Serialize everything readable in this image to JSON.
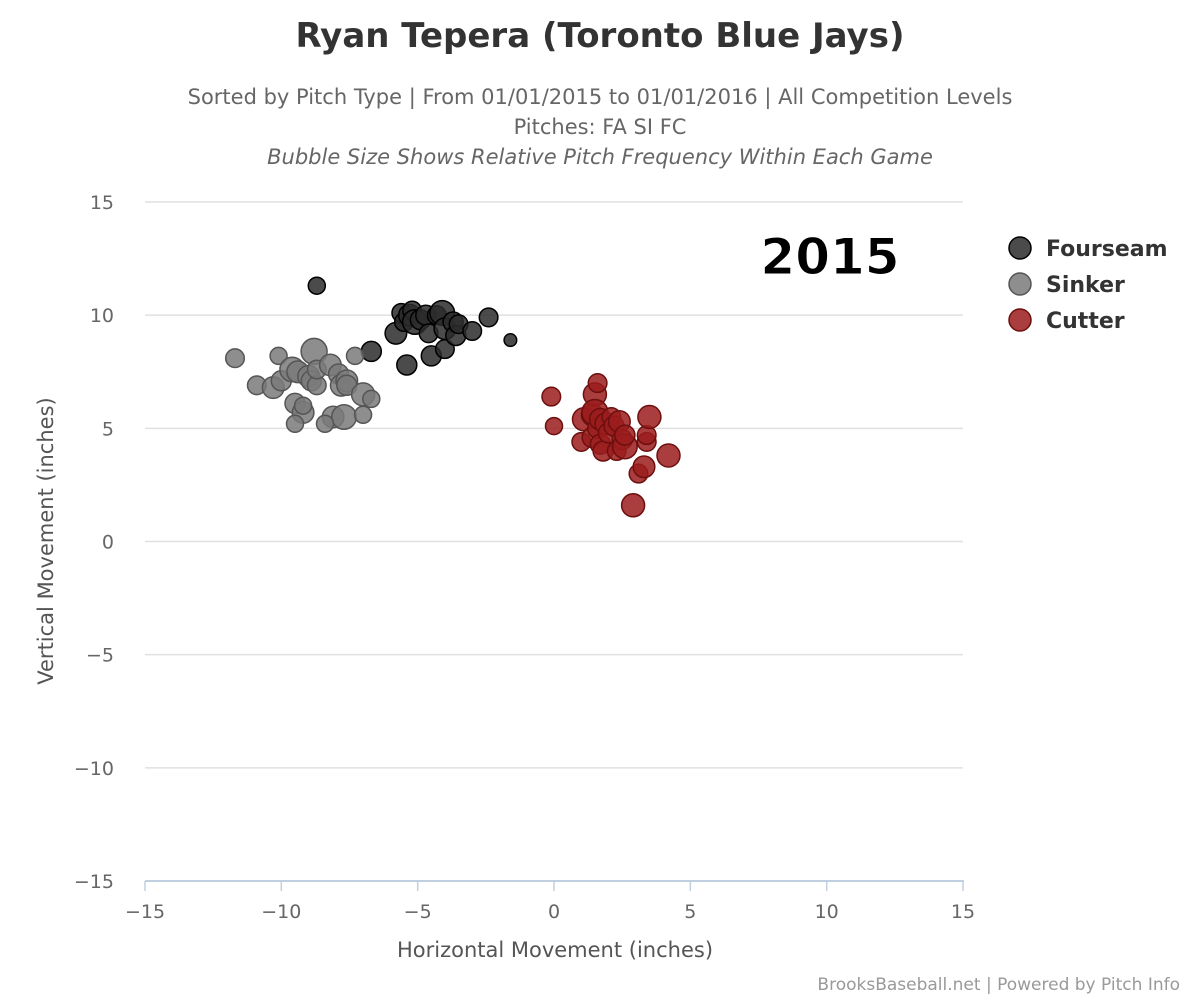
{
  "chart_data": {
    "type": "scatter",
    "title": "Ryan Tepera (Toronto Blue Jays)",
    "subtitle_lines": [
      "Sorted by Pitch Type | From 01/01/2015 to 01/01/2016 | All Competition Levels",
      "Pitches: FA SI FC",
      "Bubble Size Shows Relative Pitch Frequency Within Each Game"
    ],
    "xlabel": "Horizontal Movement (inches)",
    "ylabel": "Vertical Movement (inches)",
    "xlim": [
      -15,
      15
    ],
    "ylim": [
      -15,
      15
    ],
    "x_ticks": [
      -15,
      -10,
      -5,
      0,
      5,
      10,
      15
    ],
    "y_ticks": [
      -15,
      -10,
      -5,
      0,
      5,
      10,
      15
    ],
    "x_tick_labels": [
      "−15",
      "−10",
      "−5",
      "0",
      "5",
      "10",
      "15"
    ],
    "y_tick_labels": [
      "−15",
      "−10",
      "−5",
      "0",
      "5",
      "10",
      "15"
    ],
    "grid": "horizontal",
    "legend_position": "right",
    "annotation": "2015",
    "credit": "BrooksBaseball.net | Powered by Pitch Info",
    "series": [
      {
        "name": "Fourseam",
        "color": "#2b2b2b",
        "points": [
          [
            -8.7,
            11.3,
            0.3
          ],
          [
            -6.7,
            8.4,
            0.4
          ],
          [
            -5.8,
            9.2,
            0.45
          ],
          [
            -5.6,
            10.1,
            0.35
          ],
          [
            -5.5,
            9.7,
            0.35
          ],
          [
            -5.4,
            7.8,
            0.4
          ],
          [
            -5.3,
            10.0,
            0.45
          ],
          [
            -5.2,
            10.2,
            0.35
          ],
          [
            -5.1,
            9.7,
            0.55
          ],
          [
            -4.9,
            9.8,
            0.4
          ],
          [
            -4.7,
            10.0,
            0.4
          ],
          [
            -4.6,
            9.2,
            0.35
          ],
          [
            -4.5,
            8.2,
            0.4
          ],
          [
            -4.3,
            10.0,
            0.35
          ],
          [
            -4.1,
            10.1,
            0.55
          ],
          [
            -4.0,
            9.4,
            0.45
          ],
          [
            -4.0,
            8.5,
            0.35
          ],
          [
            -3.7,
            9.7,
            0.4
          ],
          [
            -3.6,
            9.1,
            0.4
          ],
          [
            -3.5,
            9.6,
            0.35
          ],
          [
            -3.0,
            9.3,
            0.35
          ],
          [
            -2.4,
            9.9,
            0.35
          ],
          [
            -1.6,
            8.9,
            0.15
          ]
        ]
      },
      {
        "name": "Sinker",
        "color": "#7a7a7a",
        "points": [
          [
            -11.7,
            8.1,
            0.35
          ],
          [
            -10.9,
            6.9,
            0.35
          ],
          [
            -10.3,
            6.8,
            0.45
          ],
          [
            -10.1,
            8.2,
            0.3
          ],
          [
            -10.0,
            7.1,
            0.4
          ],
          [
            -9.6,
            7.6,
            0.55
          ],
          [
            -9.5,
            6.1,
            0.4
          ],
          [
            -9.4,
            7.5,
            0.45
          ],
          [
            -9.2,
            5.7,
            0.45
          ],
          [
            -9.2,
            6.0,
            0.3
          ],
          [
            -9.5,
            5.2,
            0.3
          ],
          [
            -9.0,
            7.3,
            0.45
          ],
          [
            -8.9,
            7.1,
            0.4
          ],
          [
            -8.8,
            8.4,
            0.6
          ],
          [
            -8.7,
            6.9,
            0.35
          ],
          [
            -8.7,
            7.6,
            0.35
          ],
          [
            -8.2,
            7.8,
            0.45
          ],
          [
            -8.1,
            5.5,
            0.45
          ],
          [
            -7.9,
            7.4,
            0.4
          ],
          [
            -7.8,
            6.9,
            0.45
          ],
          [
            -7.6,
            7.1,
            0.45
          ],
          [
            -7.7,
            5.5,
            0.55
          ],
          [
            -7.6,
            6.9,
            0.4
          ],
          [
            -7.3,
            8.2,
            0.3
          ],
          [
            -7.0,
            6.5,
            0.5
          ],
          [
            -7.0,
            5.6,
            0.3
          ],
          [
            -6.7,
            6.3,
            0.3
          ],
          [
            -8.4,
            5.2,
            0.3
          ]
        ]
      },
      {
        "name": "Cutter",
        "color": "#9b1c1c",
        "points": [
          [
            -0.1,
            6.4,
            0.35
          ],
          [
            0.0,
            5.1,
            0.3
          ],
          [
            1.0,
            4.4,
            0.35
          ],
          [
            1.1,
            5.4,
            0.5
          ],
          [
            1.4,
            5.6,
            0.45
          ],
          [
            1.4,
            4.6,
            0.4
          ],
          [
            1.5,
            6.5,
            0.5
          ],
          [
            1.5,
            5.7,
            0.6
          ],
          [
            1.6,
            7.0,
            0.35
          ],
          [
            1.6,
            5.0,
            0.4
          ],
          [
            1.7,
            5.4,
            0.45
          ],
          [
            1.7,
            4.3,
            0.4
          ],
          [
            1.8,
            4.0,
            0.4
          ],
          [
            1.9,
            5.2,
            0.45
          ],
          [
            2.0,
            4.8,
            0.4
          ],
          [
            2.1,
            5.5,
            0.35
          ],
          [
            2.2,
            5.1,
            0.4
          ],
          [
            2.3,
            4.0,
            0.35
          ],
          [
            2.4,
            5.3,
            0.45
          ],
          [
            2.5,
            4.5,
            0.4
          ],
          [
            2.6,
            4.2,
            0.55
          ],
          [
            2.6,
            4.7,
            0.4
          ],
          [
            2.9,
            1.6,
            0.5
          ],
          [
            3.1,
            3.0,
            0.35
          ],
          [
            3.3,
            3.3,
            0.45
          ],
          [
            3.4,
            4.4,
            0.35
          ],
          [
            3.4,
            4.7,
            0.35
          ],
          [
            3.5,
            5.5,
            0.5
          ],
          [
            4.2,
            3.8,
            0.5
          ]
        ]
      }
    ]
  }
}
